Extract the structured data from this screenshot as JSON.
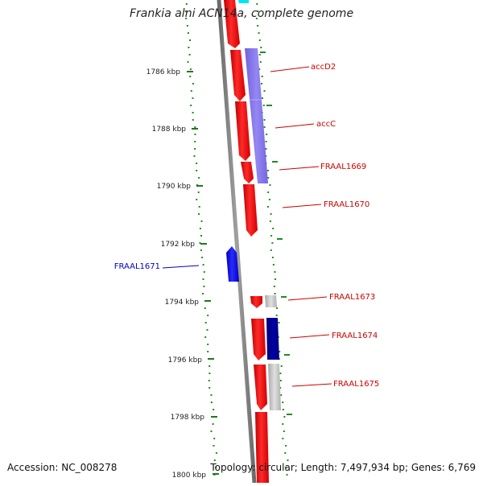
{
  "title": "Frankia alni ACN14a, complete genome",
  "footer": {
    "accession": "Accession: NC_008278",
    "summary": "Topology: circular; Length: 7,497,934 bp; Genes: 6,769"
  },
  "ticks": [
    "1786 kbp",
    "1788 kbp",
    "1790 kbp",
    "1792 kbp",
    "1794 kbp",
    "1796 kbp",
    "1798 kbp",
    "1800 kbp"
  ],
  "gene_labels": [
    {
      "text": "accD2",
      "color": "#cc0000"
    },
    {
      "text": "accC",
      "color": "#cc0000"
    },
    {
      "text": "FRAAL1669",
      "color": "#cc0000"
    },
    {
      "text": "FRAAL1670",
      "color": "#cc0000"
    },
    {
      "text": "FRAAL1671",
      "color": "#0000cc"
    },
    {
      "text": "FRAAL1673",
      "color": "#cc0000"
    },
    {
      "text": "FRAAL1674",
      "color": "#cc0000"
    },
    {
      "text": "FRAAL1675",
      "color": "#cc0000"
    }
  ],
  "colors": {
    "forward_gene": "#ff0000",
    "reverse_gene": "#0000ff",
    "purple_feature": "#7b68ee",
    "navy_feature": "#00008b",
    "grey_feature": "#c0c0c0",
    "cyan_feature": "#00e5ee",
    "backbone": "#888888",
    "gc_dots": "#228b22"
  }
}
